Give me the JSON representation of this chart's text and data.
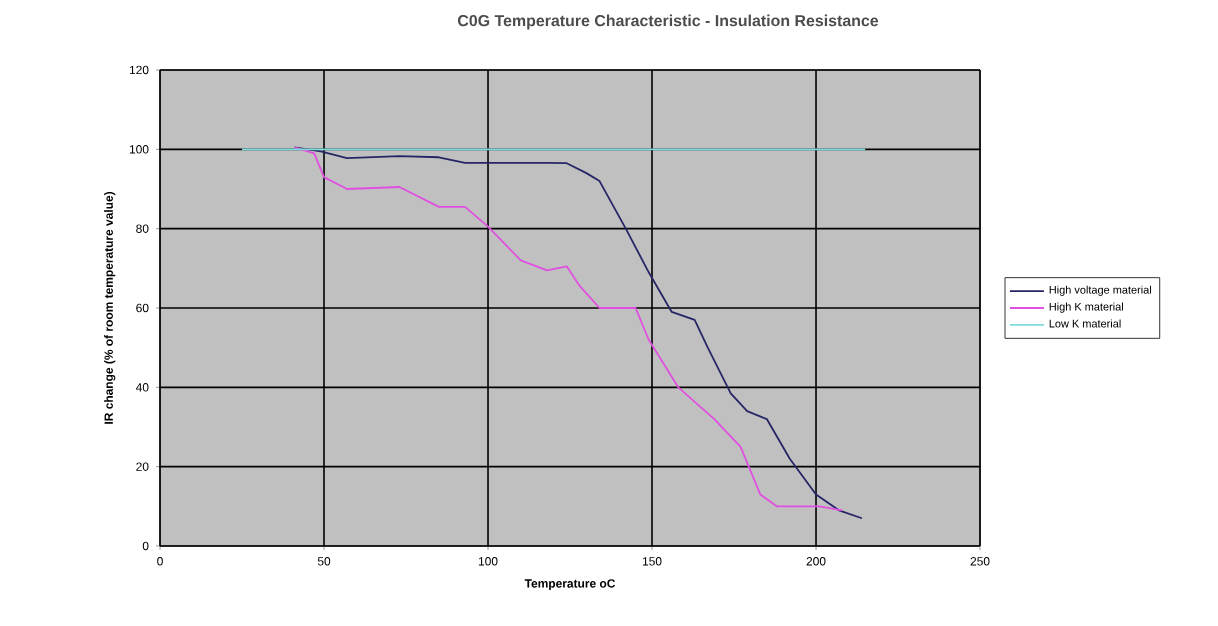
{
  "chart_data": {
    "type": "line",
    "title": "C0G Temperature Characteristic - Insulation Resistance",
    "xlabel": "Temperature oC",
    "ylabel": "IR change (% of room temperature value)",
    "xlim": [
      0,
      250
    ],
    "xticks": [
      0,
      50,
      100,
      150,
      200,
      250
    ],
    "ylim": [
      0,
      120
    ],
    "yticks": [
      0,
      20,
      40,
      60,
      80,
      100,
      120
    ],
    "grid": true,
    "legend": "right",
    "marker": "none",
    "line_style": "solid",
    "series": [
      {
        "name": "High voltage material",
        "color": "#262666",
        "x": [
          41,
          49,
          57,
          73,
          85,
          93,
          105,
          118,
          124,
          130,
          134,
          142,
          149,
          156,
          163,
          167,
          174,
          179,
          185,
          192,
          200,
          207,
          214
        ],
        "values": [
          100.5,
          99.5,
          97.8,
          98.3,
          98,
          96.6,
          96.6,
          96.6,
          96.5,
          94,
          92,
          80,
          69,
          59,
          57,
          50,
          38.5,
          34,
          32,
          22,
          13,
          9,
          7
        ]
      },
      {
        "name": "High K material",
        "color": "#e050e0",
        "x": [
          41,
          47,
          50,
          57,
          73,
          85,
          93,
          100,
          110,
          118,
          124,
          128,
          134,
          145,
          149,
          158,
          169,
          177,
          183,
          188,
          201,
          208
        ],
        "values": [
          100.5,
          99,
          93,
          90,
          90.5,
          85.5,
          85.5,
          80.5,
          72,
          69.5,
          70.5,
          65.5,
          60,
          60,
          52,
          40,
          32,
          25,
          13,
          10,
          10,
          9
        ]
      },
      {
        "name": "Low K material",
        "color": "#80dcdc",
        "x": [
          25,
          215
        ],
        "values": [
          100,
          100
        ]
      }
    ]
  }
}
